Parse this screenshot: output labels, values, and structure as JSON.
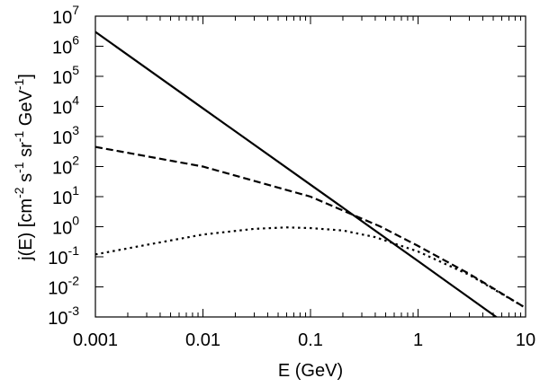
{
  "chart_data": {
    "type": "line",
    "xlabel": "E (GeV)",
    "ylabel": {
      "base": "j(E) [cm",
      "sup1": "-2",
      "mid1": " s",
      "sup2": "-1",
      "mid2": " sr",
      "sup3": "-1",
      "mid3": " GeV",
      "sup4": "-1",
      "end": "]"
    },
    "xscale": "log",
    "yscale": "log",
    "xlim": [
      0.001,
      10
    ],
    "ylim": [
      0.001,
      10000000
    ],
    "x_ticks": [
      {
        "value": 0.001,
        "label": "0.001"
      },
      {
        "value": 0.01,
        "label": "0.01"
      },
      {
        "value": 0.1,
        "label": "0.1"
      },
      {
        "value": 1,
        "label": "1"
      },
      {
        "value": 10,
        "label": "10"
      }
    ],
    "y_ticks": [
      {
        "value": 0.001,
        "base": "10",
        "exp": "-3"
      },
      {
        "value": 0.01,
        "base": "10",
        "exp": "-2"
      },
      {
        "value": 0.1,
        "base": "10",
        "exp": "-1"
      },
      {
        "value": 1,
        "base": "10",
        "exp": "0"
      },
      {
        "value": 10,
        "base": "10",
        "exp": "1"
      },
      {
        "value": 100,
        "base": "10",
        "exp": "2"
      },
      {
        "value": 1000,
        "base": "10",
        "exp": "3"
      },
      {
        "value": 10000,
        "base": "10",
        "exp": "4"
      },
      {
        "value": 100000,
        "base": "10",
        "exp": "5"
      },
      {
        "value": 1000000,
        "base": "10",
        "exp": "6"
      },
      {
        "value": 10000000,
        "base": "10",
        "exp": "7"
      }
    ],
    "grid": false,
    "series": [
      {
        "style": "solid",
        "color": "#000000",
        "x": [
          0.001,
          0.01,
          0.1,
          1,
          10
        ],
        "y": [
          3000000,
          8600,
          25,
          0.072,
          0.0002
        ]
      },
      {
        "style": "dashed",
        "color": "#000000",
        "x": [
          0.001,
          0.01,
          0.1,
          0.45,
          1,
          3,
          10
        ],
        "y": [
          450,
          100,
          10,
          1.0,
          0.23,
          0.027,
          0.002
        ]
      },
      {
        "style": "dotted",
        "color": "#000000",
        "x": [
          0.001,
          0.003,
          0.01,
          0.03,
          0.06,
          0.1,
          0.2,
          0.4,
          1,
          3,
          10
        ],
        "y": [
          0.12,
          0.25,
          0.55,
          0.85,
          0.95,
          0.9,
          0.75,
          0.45,
          0.15,
          0.025,
          0.002
        ]
      }
    ]
  }
}
